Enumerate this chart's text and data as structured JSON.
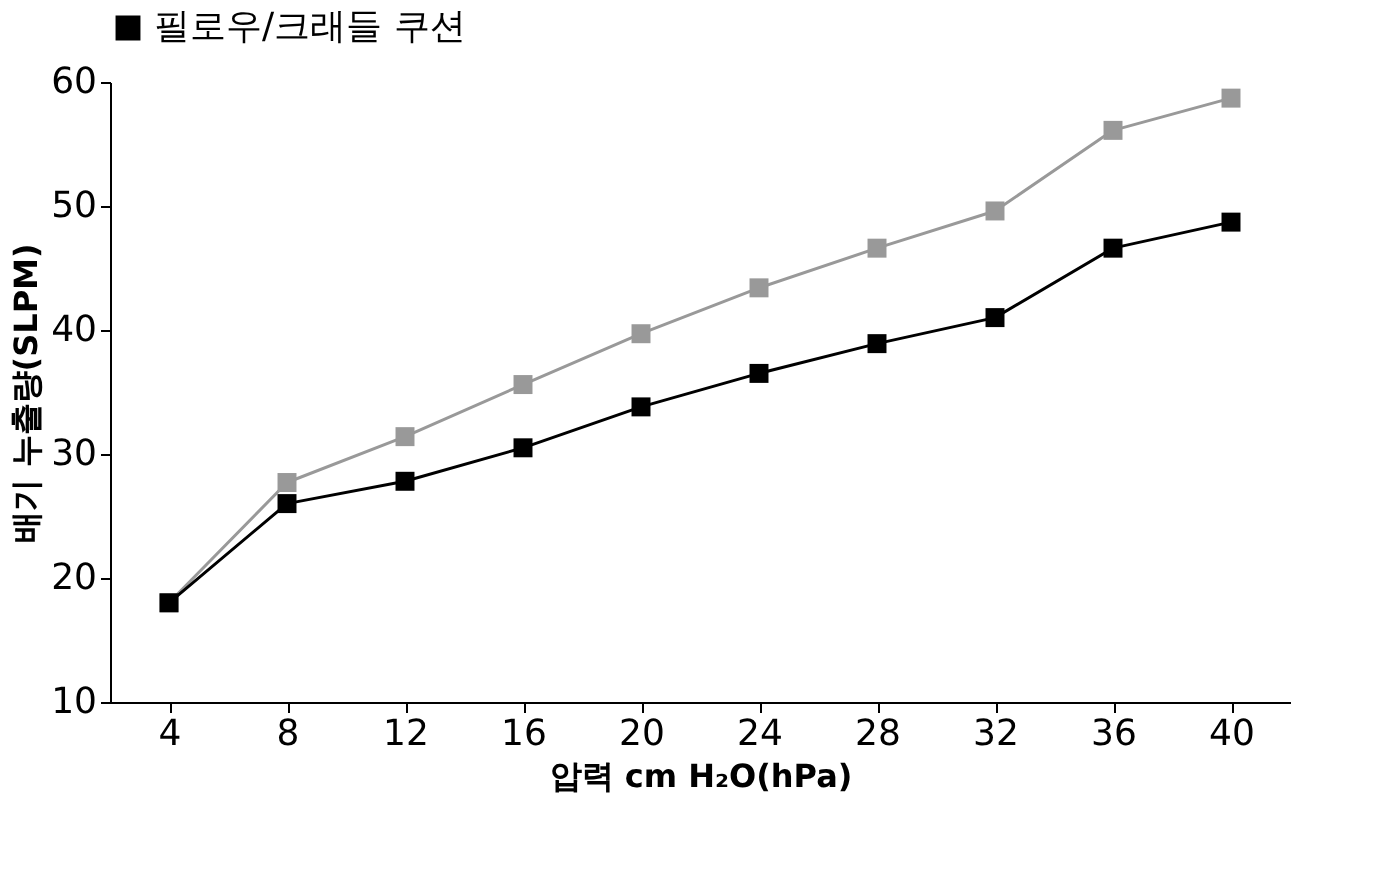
{
  "chart_data": {
    "type": "line",
    "xlabel": "압력 cm H₂O(hPa)",
    "ylabel": "배기 누출량(SLPM)",
    "categories": [
      "4",
      "8",
      "12",
      "16",
      "20",
      "24",
      "28",
      "32",
      "36",
      "40"
    ],
    "series": [
      {
        "name": "필로우/크래들 쿠션",
        "color": "#000000",
        "values": [
          18,
          26,
          27.8,
          30.5,
          33.8,
          36.5,
          38.9,
          41,
          46.6,
          48.7
        ]
      },
      {
        "color": "#999999",
        "values": [
          18,
          27.7,
          31.4,
          35.6,
          39.7,
          43.4,
          46.6,
          49.6,
          56.1,
          58.7
        ]
      }
    ],
    "ylim": [
      10,
      60
    ],
    "yticks": [
      10,
      20,
      30,
      40,
      50,
      60
    ],
    "grid": false,
    "legend": "top",
    "marker": "square",
    "line_style": "solid"
  }
}
